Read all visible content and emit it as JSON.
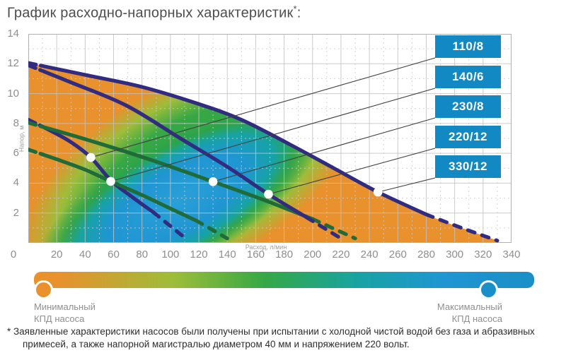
{
  "title": {
    "text": "График расходно-напорных характеристик",
    "mark": "*",
    "suffix": ":"
  },
  "axes": {
    "ylabel": "Напор, м",
    "xlabel": "Расход, л/мин"
  },
  "legend": {
    "items": [
      "110/8",
      "140/6",
      "230/8",
      "220/12",
      "330/12"
    ]
  },
  "efficiency": {
    "min_label_lines": [
      "Минимальный",
      "КПД насоса"
    ],
    "max_label_lines": [
      "Максимальный",
      "КПД насоса"
    ]
  },
  "footnote": "* Заявленные характеристики насосов были получены при испытании с холодной чистой водой без газа и абразивных примесей, а также напорной магистралью диаметром 40 мм и напряжением 220 вольт.",
  "colors": {
    "curve_navy": "#322c80",
    "curve_green": "#1f6b39",
    "legend_box_blue": "#1289c3",
    "leader_line": "#3f3f3f",
    "marker_white": "#ffffff",
    "efficiency_low_orange": "#e8912d",
    "efficiency_mid_green": "#35a845",
    "efficiency_high_blue": "#1f96d2",
    "teal": "#17a3a4",
    "yellow_green": "#9dbd3a",
    "bar_end_blue": "#1a8fc7",
    "grid_major": "#c2c2c2",
    "grid_minor": "#cdcdcd",
    "plot_border": "#b0b0b0",
    "axis_text": "#8e8e8e",
    "title_text": "#4e4e4e"
  },
  "chart_data": {
    "type": "line",
    "title": "График расходно-напорных характеристик*:",
    "xlabel": "Расход, л/мин",
    "ylabel": "Напор, м",
    "xlim": [
      0,
      340
    ],
    "ylim": [
      0,
      14
    ],
    "x_ticks": [
      0,
      20,
      40,
      60,
      80,
      100,
      120,
      140,
      160,
      180,
      200,
      220,
      240,
      260,
      280,
      300,
      320,
      340
    ],
    "y_ticks": [
      0,
      2,
      4,
      6,
      8,
      10,
      12,
      14
    ],
    "grid": "major solid every 20 l/min and 2 m, minor dashed every 10 l/min and 1 m",
    "legend_position": "right",
    "background": "2D pump-efficiency field under the 330/12 envelope: orange = min efficiency, green = mid, blue = max efficiency core",
    "series": [
      {
        "name": "110/8",
        "color": "navy",
        "points": [
          [
            0,
            8.25
          ],
          [
            15,
            7.55
          ],
          [
            30,
            6.75
          ],
          [
            44,
            5.72
          ],
          [
            58,
            4.2
          ],
          [
            72,
            3.15
          ],
          [
            88,
            2.05
          ],
          [
            110,
            0.35
          ]
        ],
        "marker": [
          44,
          5.72
        ],
        "dash_tail_from": 88
      },
      {
        "name": "140/6",
        "color": "green",
        "points": [
          [
            0,
            6.25
          ],
          [
            20,
            5.6
          ],
          [
            40,
            4.9
          ],
          [
            58,
            4.12
          ],
          [
            80,
            3.2
          ],
          [
            100,
            2.3
          ],
          [
            118,
            1.5
          ],
          [
            140,
            0.3
          ]
        ],
        "marker": [
          58,
          4.12
        ],
        "dash_tail_from": 118
      },
      {
        "name": "230/8",
        "color": "green",
        "points": [
          [
            0,
            8.05
          ],
          [
            40,
            6.95
          ],
          [
            85,
            5.6
          ],
          [
            130,
            4.1
          ],
          [
            165,
            2.9
          ],
          [
            200,
            1.6
          ],
          [
            230,
            0.3
          ]
        ],
        "marker": [
          130,
          4.1
        ],
        "dash_tail_from": 200
      },
      {
        "name": "220/12",
        "color": "navy",
        "points": [
          [
            0,
            11.9
          ],
          [
            30,
            10.75
          ],
          [
            69,
            9.2
          ],
          [
            107,
            7.0
          ],
          [
            140,
            5.1
          ],
          [
            169,
            3.26
          ],
          [
            196,
            1.7
          ],
          [
            220,
            0.3
          ]
        ],
        "marker": [
          169,
          3.26
        ],
        "dash_tail_from": 196
      },
      {
        "name": "330/12",
        "color": "navy",
        "points": [
          [
            0,
            12.05
          ],
          [
            40,
            11.25
          ],
          [
            80,
            10.45
          ],
          [
            120,
            9.3
          ],
          [
            150,
            8.25
          ],
          [
            184,
            6.6
          ],
          [
            215,
            5.0
          ],
          [
            246,
            3.4
          ],
          [
            280,
            1.9
          ],
          [
            305,
            1.0
          ],
          [
            330,
            0.15
          ]
        ],
        "marker": [
          246,
          3.4
        ],
        "dash_tail_from": 280
      }
    ]
  }
}
